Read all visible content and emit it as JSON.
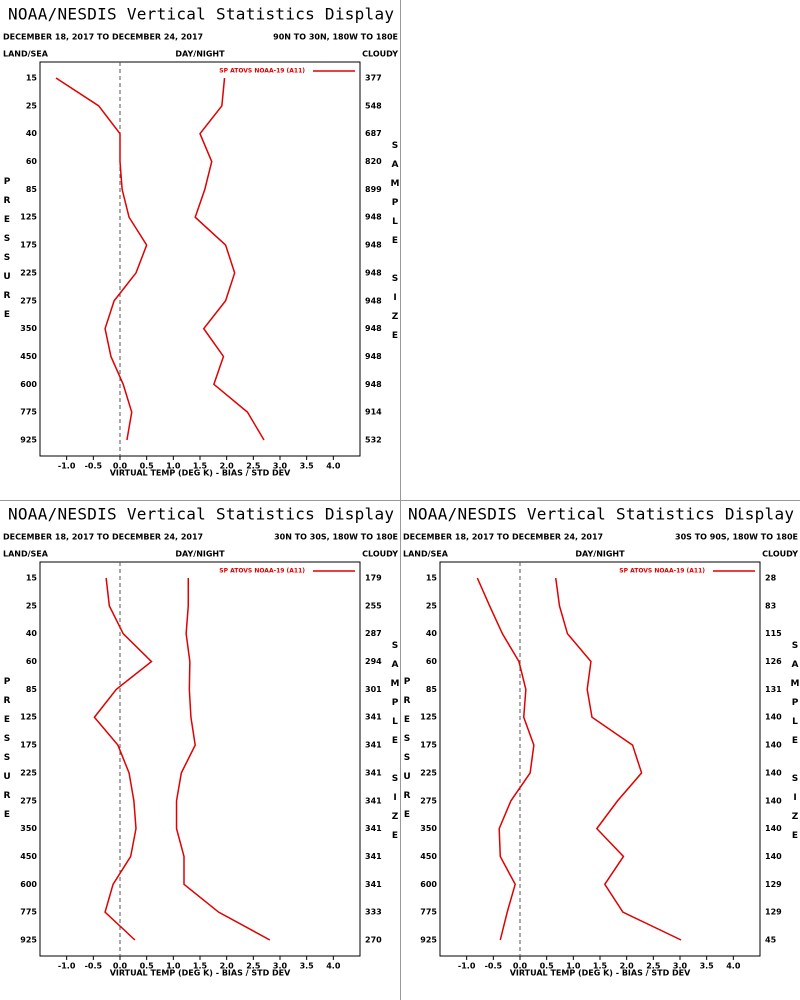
{
  "chart_data": [
    {
      "type": "line",
      "title": "NOAA/NESDIS Vertical Statistics Display",
      "subtitle": "DECEMBER 18, 2017 TO DECEMBER 24, 2017",
      "region": "90N TO 30N, 180W TO 180E",
      "left_header": "LAND/SEA",
      "center_header": "DAY/NIGHT",
      "right_header": "CLOUDY",
      "y_label": "PRESSURE",
      "y2_label": "SAMPLE SIZE",
      "x_label": "VIRTUAL TEMP (DEG K) - BIAS / STD DEV",
      "categories": [
        15,
        25,
        40,
        60,
        85,
        125,
        175,
        225,
        275,
        350,
        450,
        600,
        775,
        925
      ],
      "sample_size": [
        377,
        548,
        687,
        820,
        899,
        948,
        948,
        948,
        948,
        948,
        948,
        948,
        914,
        532
      ],
      "series": [
        {
          "name": "SP ATOVS NOAA-19 (A11)",
          "color": "#e00000",
          "bias": [
            -1.2,
            -0.4,
            0.0,
            0.0,
            0.04,
            0.17,
            0.5,
            0.3,
            -0.11,
            -0.28,
            -0.17,
            0.06,
            0.22,
            0.13
          ],
          "std_dev": [
            1.96,
            1.91,
            1.5,
            1.72,
            1.59,
            1.41,
            1.98,
            2.15,
            1.98,
            1.57,
            1.94,
            1.76,
            2.39,
            2.7
          ]
        }
      ],
      "xlim": [
        -1.5,
        4.5
      ],
      "xticks": [
        {
          "value": -1,
          "label": "-1.0"
        },
        -0.5,
        {
          "value": 0,
          "label": "0.0"
        },
        0.5,
        {
          "value": 1,
          "label": "1.0"
        },
        1.5,
        {
          "value": 2,
          "label": "2.0"
        },
        2.5,
        {
          "value": 3,
          "label": "3.0"
        },
        3.5,
        {
          "value": 4,
          "label": "4.0"
        }
      ]
    },
    {
      "type": "line",
      "title": "NOAA/NESDIS Vertical Statistics Display",
      "subtitle": "DECEMBER 18, 2017 TO DECEMBER 24, 2017",
      "region": "30N TO 30S, 180W TO 180E",
      "left_header": "LAND/SEA",
      "center_header": "DAY/NIGHT",
      "right_header": "CLOUDY",
      "y_label": "PRESSURE",
      "y2_label": "SAMPLE SIZE",
      "x_label": "VIRTUAL TEMP (DEG K) - BIAS / STD DEV",
      "categories": [
        15,
        25,
        40,
        60,
        85,
        125,
        175,
        225,
        275,
        350,
        450,
        600,
        775,
        925
      ],
      "sample_size": [
        179,
        255,
        287,
        294,
        301,
        341,
        341,
        341,
        341,
        341,
        341,
        341,
        333,
        270
      ],
      "series": [
        {
          "name": "SP ATOVS NOAA-19 (A11)",
          "color": "#e00000",
          "bias": [
            -0.26,
            -0.2,
            0.06,
            0.59,
            -0.07,
            -0.48,
            -0.04,
            0.17,
            0.26,
            0.3,
            0.2,
            -0.13,
            -0.28,
            0.28
          ],
          "std_dev": [
            1.28,
            1.28,
            1.24,
            1.31,
            1.3,
            1.33,
            1.41,
            1.15,
            1.06,
            1.06,
            1.2,
            1.2,
            1.85,
            2.81
          ]
        }
      ],
      "xlim": [
        -1.5,
        4.5
      ],
      "xticks": [
        {
          "value": -1,
          "label": "-1.0"
        },
        -0.5,
        {
          "value": 0,
          "label": "0.0"
        },
        0.5,
        {
          "value": 1,
          "label": "1.0"
        },
        1.5,
        {
          "value": 2,
          "label": "2.0"
        },
        2.5,
        {
          "value": 3,
          "label": "3.0"
        },
        3.5,
        {
          "value": 4,
          "label": "4.0"
        }
      ]
    },
    {
      "type": "line",
      "title": "NOAA/NESDIS Vertical Statistics Display",
      "subtitle": "DECEMBER 18, 2017 TO DECEMBER 24, 2017",
      "region": "30S TO 90S, 180W TO 180E",
      "left_header": "LAND/SEA",
      "center_header": "DAY/NIGHT",
      "right_header": "CLOUDY",
      "y_label": "PRESSURE",
      "y2_label": "SAMPLE SIZE",
      "x_label": "VIRTUAL TEMP (DEG K) - BIAS / STD DEV",
      "categories": [
        15,
        25,
        40,
        60,
        85,
        125,
        175,
        225,
        275,
        350,
        450,
        600,
        775,
        925
      ],
      "sample_size": [
        28,
        83,
        115,
        126,
        131,
        140,
        140,
        140,
        140,
        140,
        140,
        129,
        129,
        45
      ],
      "series": [
        {
          "name": "SP ATOVS NOAA-19 (A11)",
          "color": "#e00000",
          "bias": [
            -0.8,
            -0.57,
            -0.33,
            -0.02,
            0.11,
            0.07,
            0.26,
            0.19,
            -0.17,
            -0.39,
            -0.37,
            -0.09,
            -0.24,
            -0.37
          ],
          "std_dev": [
            0.67,
            0.74,
            0.89,
            1.33,
            1.26,
            1.35,
            2.11,
            2.28,
            1.83,
            1.44,
            1.94,
            1.59,
            1.93,
            3.02
          ]
        }
      ],
      "xlim": [
        -1.5,
        4.5
      ],
      "xticks": [
        {
          "value": -1,
          "label": "-1.0"
        },
        -0.5,
        {
          "value": 0,
          "label": "0.0"
        },
        0.5,
        {
          "value": 1,
          "label": "1.0"
        },
        1.5,
        {
          "value": 2,
          "label": "2.0"
        },
        2.5,
        {
          "value": 3,
          "label": "3.0"
        },
        3.5,
        {
          "value": 4,
          "label": "4.0"
        }
      ]
    }
  ]
}
